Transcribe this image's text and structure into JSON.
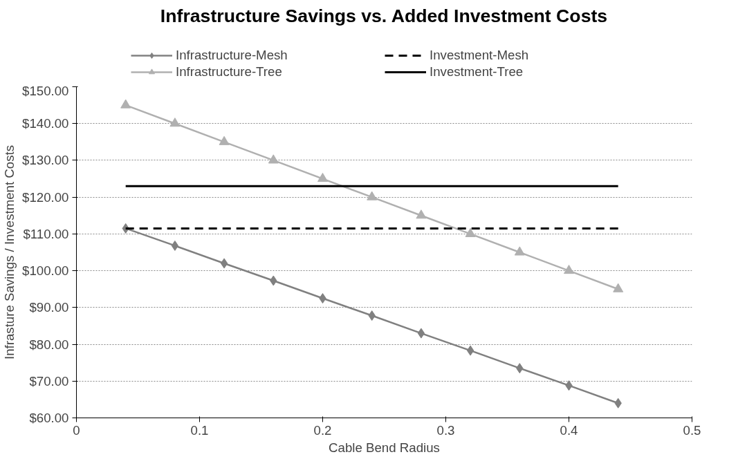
{
  "chart_data": {
    "type": "line",
    "title": "Infrastructure Savings vs. Added Investment Costs",
    "xlabel": "Cable Bend Radius",
    "ylabel": "Infrasture Savings / Investment Costs",
    "x": [
      0.04,
      0.08,
      0.12,
      0.16,
      0.2,
      0.24,
      0.28,
      0.32,
      0.36,
      0.4,
      0.44
    ],
    "series": [
      {
        "name": "Infrastructure-Mesh",
        "color": "#808080",
        "marker": "diamond",
        "line_style": "solid",
        "values": [
          111.5,
          106.8,
          102.0,
          97.3,
          92.5,
          87.8,
          83.0,
          78.3,
          73.5,
          68.8,
          64.0
        ]
      },
      {
        "name": "Infrastructure-Tree",
        "color": "#b0b0b0",
        "marker": "triangle",
        "line_style": "solid",
        "values": [
          145,
          140,
          135,
          130,
          125,
          120,
          115,
          110,
          105,
          100,
          95
        ]
      },
      {
        "name": "Investment-Mesh",
        "color": "#000000",
        "marker": "none",
        "line_style": "dashed",
        "values": [
          111.5,
          111.5,
          111.5,
          111.5,
          111.5,
          111.5,
          111.5,
          111.5,
          111.5,
          111.5,
          111.5
        ]
      },
      {
        "name": "Investment-Tree",
        "color": "#000000",
        "marker": "none",
        "line_style": "solid",
        "values": [
          123,
          123,
          123,
          123,
          123,
          123,
          123,
          123,
          123,
          123,
          123
        ]
      }
    ],
    "xlim": [
      0,
      0.5
    ],
    "xticks": [
      0,
      0.1,
      0.2,
      0.3,
      0.4,
      0.5
    ],
    "ylim": [
      60,
      150
    ],
    "yticks": [
      {
        "value": 60,
        "label": "$60.00"
      },
      {
        "value": 70,
        "label": "$70.00"
      },
      {
        "value": 80,
        "label": "$80.00"
      },
      {
        "value": 90,
        "label": "$90.00"
      },
      {
        "value": 100,
        "label": "$100.00"
      },
      {
        "value": 110,
        "label": "$110.00"
      },
      {
        "value": 120,
        "label": "$120.00"
      },
      {
        "value": 130,
        "label": "$130.00"
      },
      {
        "value": 140,
        "label": "$140.00"
      },
      {
        "value": 150,
        "label": "$150.00"
      }
    ],
    "grid": "y",
    "legend": "top"
  }
}
